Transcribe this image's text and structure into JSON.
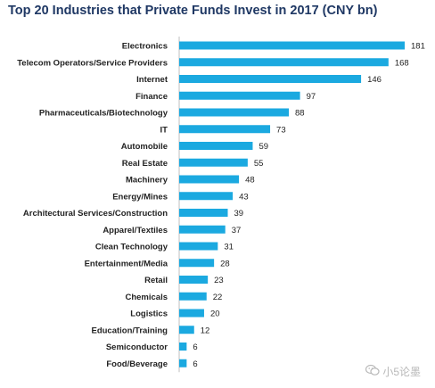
{
  "chart_data": {
    "type": "bar",
    "orientation": "horizontal",
    "title": "Top 20 Industries that Private Funds Invest in 2017 (CNY bn)",
    "categories": [
      "Electronics",
      "Telecom Operators/Service Providers",
      "Internet",
      "Finance",
      "Pharmaceuticals/Biotechnology",
      "IT",
      "Automobile",
      "Real Estate",
      "Machinery",
      "Energy/Mines",
      "Architectural Services/Construction",
      "Apparel/Textiles",
      "Clean Technology",
      "Entertainment/Media",
      "Retail",
      "Chemicals",
      "Logistics",
      "Education/Training",
      "Semiconductor",
      "Food/Beverage"
    ],
    "values": [
      181,
      168,
      146,
      97,
      88,
      73,
      59,
      55,
      48,
      43,
      39,
      37,
      31,
      28,
      23,
      22,
      20,
      12,
      6,
      6
    ],
    "xlim": [
      0,
      181
    ],
    "grid": false,
    "legend": "none",
    "bar_color": "#1ba9e0"
  },
  "watermark": {
    "text": "小5论墨",
    "icon": "wechat-icon"
  }
}
